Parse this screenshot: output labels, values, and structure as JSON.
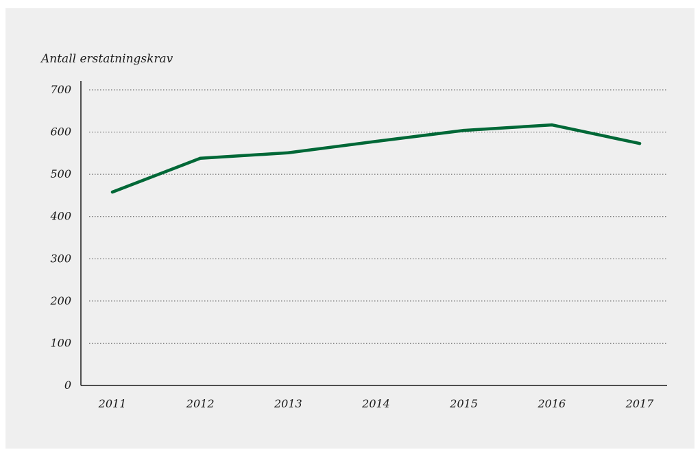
{
  "chart_data": {
    "type": "line",
    "title": "",
    "xlabel": "",
    "ylabel": "Antall erstatningskrav",
    "categories": [
      "2011",
      "2012",
      "2013",
      "2014",
      "2015",
      "2016",
      "2017"
    ],
    "series": [
      {
        "values": [
          458,
          538,
          551,
          578,
          604,
          617,
          573
        ]
      }
    ],
    "ylim": [
      0,
      700
    ],
    "yticks": [
      "0",
      "100",
      "200",
      "300",
      "400",
      "500",
      "600",
      "700"
    ],
    "grid": true,
    "legend": "none",
    "colors": {
      "line": "#006837",
      "grid": "#555555",
      "axis": "#1a1a1a",
      "background": "#efefef"
    }
  }
}
